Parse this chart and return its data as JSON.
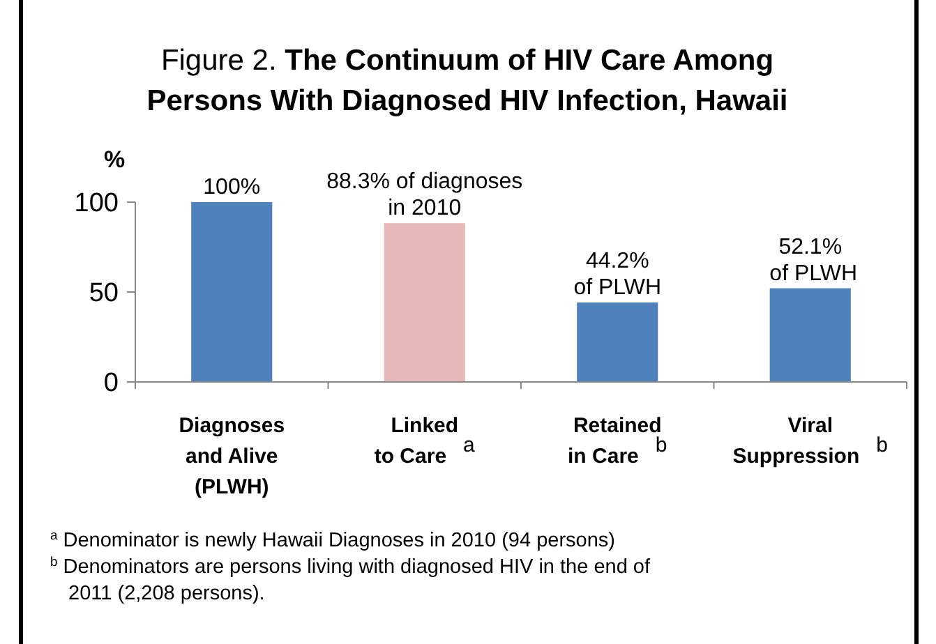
{
  "chart_data": {
    "type": "bar",
    "title": "Figure 2.  The Continuum of HIV Care Among\nPersons With Diagnosed HIV Infection, Hawaii",
    "ylabel": "%",
    "categories": [
      "Diagnoses\nand Alive\n(PLWH)",
      "Linked\nto Care$^{a}$",
      "Retained\nin Care$^{b}$",
      "Viral\nSuppression$^{b}$"
    ],
    "values": [
      100,
      88.3,
      44.2,
      52.1
    ],
    "colors": [
      "#4f81bd",
      "#e6b9b8",
      "#4f81bd",
      "#4f81bd"
    ],
    "value_labels": [
      "100%",
      "88.3% of diagnoses\nin 2010",
      "44.2%\nof PLWH",
      "52.1%\n of PLWH"
    ],
    "ylim": [
      0,
      100
    ],
    "yticks": [
      0,
      50,
      100
    ],
    "grid": false,
    "annotations": [
      "$^{a}$ Denominator is newly Hawaii Diagnoses in 2010 (94 persons)",
      "$^{b}$ Denominators are persons living with diagnosed HIV in the end of\n 2011 (2,208 persons)."
    ]
  }
}
